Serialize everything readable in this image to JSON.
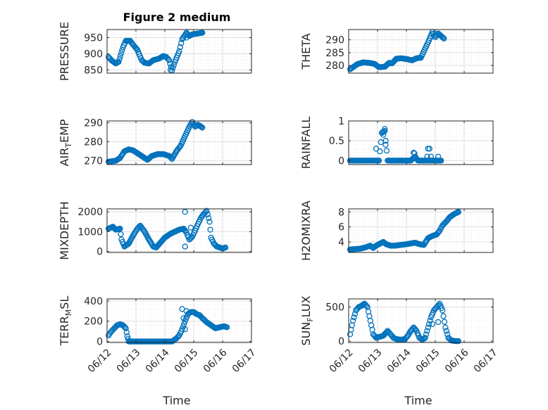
{
  "figure": {
    "title": "Figure 2 medium",
    "xlabel": "Time"
  },
  "chart_data": [
    {
      "type": "scatter",
      "ylabel": "PRESSURE",
      "ylabel_sub": "",
      "ylim": [
        840,
        975
      ],
      "yticks": [
        850,
        900,
        950
      ],
      "ytick_labels": [
        "850",
        "900",
        "950"
      ],
      "xlim": [
        0,
        5
      ],
      "xticks": [
        0,
        1,
        2,
        3,
        4,
        5
      ],
      "xtick_labels": [
        "06/12",
        "06/13",
        "06/14",
        "06/15",
        "06/16",
        "06/17"
      ],
      "grid": true,
      "marker": "open-circle",
      "color": "#0072BD",
      "key_points": [
        [
          0.05,
          890
        ],
        [
          0.15,
          880
        ],
        [
          0.3,
          870
        ],
        [
          0.4,
          875
        ],
        [
          0.55,
          920
        ],
        [
          0.65,
          940
        ],
        [
          0.8,
          940
        ],
        [
          0.9,
          928
        ],
        [
          1.05,
          912
        ],
        [
          1.2,
          880
        ],
        [
          1.3,
          872
        ],
        [
          1.45,
          870
        ],
        [
          1.6,
          880
        ],
        [
          1.8,
          885
        ],
        [
          1.95,
          893
        ],
        [
          2.05,
          890
        ],
        [
          2.15,
          880
        ],
        [
          2.25,
          848
        ],
        [
          2.35,
          875
        ],
        [
          2.5,
          908
        ],
        [
          2.6,
          945
        ],
        [
          2.75,
          965
        ],
        [
          2.85,
          955
        ],
        [
          2.95,
          960
        ],
        [
          3.1,
          962
        ],
        [
          3.3,
          965
        ]
      ],
      "extra_points": [
        [
          2.75,
          950
        ],
        [
          2.2,
          850
        ]
      ]
    },
    {
      "type": "scatter",
      "ylabel": "THETA",
      "ylabel_sub": "",
      "ylim": [
        277,
        294
      ],
      "yticks": [
        280,
        285,
        290
      ],
      "ytick_labels": [
        "280",
        "285",
        "290"
      ],
      "xlim": [
        0,
        5
      ],
      "xticks": [
        0,
        1,
        2,
        3,
        4,
        5
      ],
      "xtick_labels": [
        "06/12",
        "06/13",
        "06/14",
        "06/15",
        "06/16",
        "06/17"
      ],
      "grid": true,
      "marker": "open-circle",
      "color": "#0072BD",
      "key_points": [
        [
          0.05,
          278.5
        ],
        [
          0.3,
          280.5
        ],
        [
          0.5,
          281.2
        ],
        [
          0.7,
          281
        ],
        [
          0.9,
          280.6
        ],
        [
          1.05,
          279.3
        ],
        [
          1.25,
          279.5
        ],
        [
          1.4,
          281
        ],
        [
          1.5,
          280.8
        ],
        [
          1.65,
          282.6
        ],
        [
          1.8,
          282.8
        ],
        [
          2.0,
          282.5
        ],
        [
          2.2,
          282
        ],
        [
          2.35,
          282.8
        ],
        [
          2.5,
          283
        ],
        [
          2.75,
          289
        ],
        [
          2.9,
          293
        ],
        [
          3.0,
          291
        ],
        [
          3.1,
          292.5
        ],
        [
          3.3,
          290.5
        ]
      ],
      "extra_points": []
    },
    {
      "type": "scatter",
      "ylabel": "AIR",
      "ylabel_sub": "T",
      "ylabel_suffix": "EMP",
      "ylim": [
        268,
        291
      ],
      "yticks": [
        270,
        280,
        290
      ],
      "ytick_labels": [
        "270",
        "280",
        "290"
      ],
      "xlim": [
        0,
        5
      ],
      "xticks": [
        0,
        1,
        2,
        3,
        4,
        5
      ],
      "xtick_labels": [
        "06/12",
        "06/13",
        "06/14",
        "06/15",
        "06/16",
        "06/17"
      ],
      "grid": true,
      "marker": "open-circle",
      "color": "#0072BD",
      "key_points": [
        [
          0.05,
          269.5
        ],
        [
          0.3,
          270
        ],
        [
          0.45,
          271.5
        ],
        [
          0.6,
          275
        ],
        [
          0.75,
          276
        ],
        [
          0.9,
          275.5
        ],
        [
          1.05,
          274
        ],
        [
          1.2,
          272.5
        ],
        [
          1.4,
          270.5
        ],
        [
          1.55,
          272.5
        ],
        [
          1.75,
          273.5
        ],
        [
          1.95,
          273.5
        ],
        [
          2.15,
          272.5
        ],
        [
          2.25,
          271
        ],
        [
          2.4,
          275
        ],
        [
          2.55,
          278
        ],
        [
          2.7,
          283
        ],
        [
          2.85,
          288
        ],
        [
          2.95,
          290.5
        ],
        [
          3.05,
          288
        ],
        [
          3.15,
          289
        ],
        [
          3.3,
          287.5
        ]
      ],
      "extra_points": []
    },
    {
      "type": "scatter",
      "ylabel": "RAINFALL",
      "ylabel_sub": "",
      "ylim": [
        -0.1,
        1.0
      ],
      "yticks": [
        0,
        0.5,
        1
      ],
      "ytick_labels": [
        "0",
        "0.5",
        "1"
      ],
      "xlim": [
        0,
        5
      ],
      "xticks": [
        0,
        1,
        2,
        3,
        4,
        5
      ],
      "xtick_labels": [
        "06/12",
        "06/13",
        "06/14",
        "06/15",
        "06/16",
        "06/17"
      ],
      "grid": true,
      "marker": "open-circle",
      "color": "#0072BD",
      "key_points": [
        [
          0.05,
          0
        ],
        [
          1.05,
          0
        ],
        [
          1.15,
          0.7
        ],
        [
          1.25,
          0.75
        ],
        [
          1.35,
          0
        ],
        [
          2.15,
          0
        ],
        [
          2.3,
          0.1
        ],
        [
          2.4,
          0
        ],
        [
          3.2,
          0
        ]
      ],
      "extra_points": [
        [
          0.95,
          0.3
        ],
        [
          1.15,
          0.7
        ],
        [
          1.2,
          0.65
        ],
        [
          1.25,
          0.8
        ],
        [
          1.28,
          0.4
        ],
        [
          2.25,
          0.2
        ],
        [
          2.28,
          0.18
        ],
        [
          2.75,
          0.3
        ],
        [
          2.8,
          0.3
        ],
        [
          2.72,
          0.1
        ],
        [
          2.85,
          0.1
        ],
        [
          3.1,
          0.1
        ]
      ]
    },
    {
      "type": "scatter",
      "ylabel": "MIXDEPTH",
      "ylabel_sub": "",
      "ylim": [
        -50,
        2150
      ],
      "yticks": [
        0,
        1000,
        2000
      ],
      "ytick_labels": [
        "0",
        "1000",
        "2000"
      ],
      "xlim": [
        0,
        5
      ],
      "xticks": [
        0,
        1,
        2,
        3,
        4,
        5
      ],
      "xtick_labels": [
        "06/12",
        "06/13",
        "06/14",
        "06/15",
        "06/16",
        "06/17"
      ],
      "grid": true,
      "marker": "open-circle",
      "color": "#0072BD",
      "key_points": [
        [
          0.05,
          1150
        ],
        [
          0.2,
          1250
        ],
        [
          0.3,
          1100
        ],
        [
          0.45,
          1150
        ],
        [
          0.5,
          600
        ],
        [
          0.6,
          250
        ],
        [
          0.75,
          400
        ],
        [
          0.9,
          800
        ],
        [
          1.05,
          1150
        ],
        [
          1.15,
          1300
        ],
        [
          1.3,
          1000
        ],
        [
          1.45,
          600
        ],
        [
          1.6,
          250
        ],
        [
          1.7,
          200
        ],
        [
          1.85,
          450
        ],
        [
          2.0,
          700
        ],
        [
          2.2,
          900
        ],
        [
          2.35,
          1000
        ],
        [
          2.5,
          1100
        ],
        [
          2.65,
          1150
        ],
        [
          2.75,
          950
        ],
        [
          2.85,
          600
        ],
        [
          2.95,
          750
        ],
        [
          3.05,
          1050
        ],
        [
          3.15,
          1400
        ],
        [
          3.25,
          1700
        ],
        [
          3.35,
          1900
        ],
        [
          3.45,
          2050
        ],
        [
          3.55,
          1500
        ],
        [
          3.6,
          700
        ],
        [
          3.7,
          400
        ],
        [
          3.8,
          250
        ],
        [
          3.9,
          200
        ],
        [
          4.0,
          150
        ],
        [
          4.1,
          200
        ]
      ],
      "extra_points": [
        [
          2.7,
          250
        ],
        [
          2.7,
          2000
        ],
        [
          2.9,
          1200
        ]
      ]
    },
    {
      "type": "scatter",
      "ylabel": "H2OMIXRA",
      "ylabel_sub": "",
      "ylim": [
        2.6,
        8.4
      ],
      "yticks": [
        4,
        6,
        8
      ],
      "ytick_labels": [
        "4",
        "6",
        "8"
      ],
      "xlim": [
        0,
        5
      ],
      "xticks": [
        0,
        1,
        2,
        3,
        4,
        5
      ],
      "xtick_labels": [
        "06/12",
        "06/13",
        "06/14",
        "06/15",
        "06/16",
        "06/17"
      ],
      "grid": true,
      "marker": "open-circle",
      "color": "#0072BD",
      "key_points": [
        [
          0.05,
          3.0
        ],
        [
          0.4,
          3.1
        ],
        [
          0.6,
          3.3
        ],
        [
          0.75,
          3.5
        ],
        [
          0.85,
          3.2
        ],
        [
          0.95,
          3.5
        ],
        [
          1.1,
          3.8
        ],
        [
          1.2,
          4.0
        ],
        [
          1.3,
          3.7
        ],
        [
          1.45,
          3.5
        ],
        [
          1.6,
          3.5
        ],
        [
          1.8,
          3.6
        ],
        [
          2.0,
          3.7
        ],
        [
          2.15,
          3.8
        ],
        [
          2.3,
          3.9
        ],
        [
          2.45,
          3.7
        ],
        [
          2.6,
          3.6
        ],
        [
          2.75,
          4.5
        ],
        [
          2.9,
          4.8
        ],
        [
          3.05,
          5.0
        ],
        [
          3.15,
          5.5
        ],
        [
          3.25,
          6.2
        ],
        [
          3.4,
          6.8
        ],
        [
          3.5,
          7.3
        ],
        [
          3.65,
          7.7
        ],
        [
          3.8,
          8.0
        ]
      ],
      "extra_points": []
    },
    {
      "type": "scatter",
      "ylabel": "TERR",
      "ylabel_sub": "M",
      "ylabel_suffix": "SL",
      "ylim": [
        -10,
        420
      ],
      "yticks": [
        0,
        200,
        400
      ],
      "ytick_labels": [
        "0",
        "200",
        "400"
      ],
      "xlim": [
        0,
        5
      ],
      "xticks": [
        0,
        1,
        2,
        3,
        4,
        5
      ],
      "xtick_labels": [
        "06/12",
        "06/13",
        "06/14",
        "06/15",
        "06/16",
        "06/17"
      ],
      "grid": true,
      "marker": "open-circle",
      "color": "#0072BD",
      "key_points": [
        [
          0.05,
          60
        ],
        [
          0.15,
          100
        ],
        [
          0.25,
          130
        ],
        [
          0.35,
          160
        ],
        [
          0.45,
          170
        ],
        [
          0.55,
          160
        ],
        [
          0.65,
          130
        ],
        [
          0.7,
          50
        ],
        [
          0.75,
          0
        ],
        [
          1.0,
          0
        ],
        [
          1.5,
          0
        ],
        [
          2.0,
          0
        ],
        [
          2.25,
          0
        ],
        [
          2.4,
          30
        ],
        [
          2.5,
          60
        ],
        [
          2.6,
          120
        ],
        [
          2.7,
          200
        ],
        [
          2.8,
          270
        ],
        [
          2.9,
          290
        ],
        [
          3.0,
          290
        ],
        [
          3.1,
          270
        ],
        [
          3.2,
          260
        ],
        [
          3.3,
          230
        ],
        [
          3.45,
          190
        ],
        [
          3.6,
          160
        ],
        [
          3.75,
          130
        ],
        [
          3.9,
          140
        ],
        [
          4.05,
          150
        ],
        [
          4.15,
          140
        ]
      ],
      "extra_points": [
        [
          2.6,
          320
        ],
        [
          2.65,
          230
        ],
        [
          2.75,
          300
        ],
        [
          2.7,
          120
        ]
      ]
    },
    {
      "type": "scatter",
      "ylabel": "SUN",
      "ylabel_sub": "F",
      "ylabel_suffix": "LUX",
      "ylim": [
        -20,
        620
      ],
      "yticks": [
        0,
        500
      ],
      "ytick_labels": [
        "0",
        "500"
      ],
      "xlim": [
        0,
        5
      ],
      "xticks": [
        0,
        1,
        2,
        3,
        4,
        5
      ],
      "xtick_labels": [
        "06/12",
        "06/13",
        "06/14",
        "06/15",
        "06/16",
        "06/17"
      ],
      "grid": true,
      "marker": "open-circle",
      "color": "#0072BD",
      "key_points": [
        [
          0.05,
          100
        ],
        [
          0.15,
          300
        ],
        [
          0.25,
          450
        ],
        [
          0.35,
          500
        ],
        [
          0.45,
          520
        ],
        [
          0.55,
          550
        ],
        [
          0.65,
          500
        ],
        [
          0.75,
          300
        ],
        [
          0.85,
          100
        ],
        [
          0.95,
          50
        ],
        [
          1.05,
          60
        ],
        [
          1.2,
          80
        ],
        [
          1.35,
          150
        ],
        [
          1.45,
          100
        ],
        [
          1.55,
          50
        ],
        [
          1.65,
          30
        ],
        [
          1.8,
          20
        ],
        [
          1.95,
          30
        ],
        [
          2.05,
          80
        ],
        [
          2.15,
          150
        ],
        [
          2.25,
          200
        ],
        [
          2.35,
          150
        ],
        [
          2.45,
          50
        ],
        [
          2.55,
          20
        ],
        [
          2.65,
          50
        ],
        [
          2.75,
          200
        ],
        [
          2.85,
          350
        ],
        [
          2.95,
          450
        ],
        [
          3.05,
          500
        ],
        [
          3.15,
          550
        ],
        [
          3.25,
          450
        ],
        [
          3.35,
          200
        ],
        [
          3.45,
          50
        ],
        [
          3.55,
          10
        ],
        [
          3.7,
          0
        ],
        [
          3.8,
          0
        ]
      ],
      "extra_points": [
        [
          2.9,
          250
        ],
        [
          3.1,
          280
        ]
      ]
    }
  ]
}
